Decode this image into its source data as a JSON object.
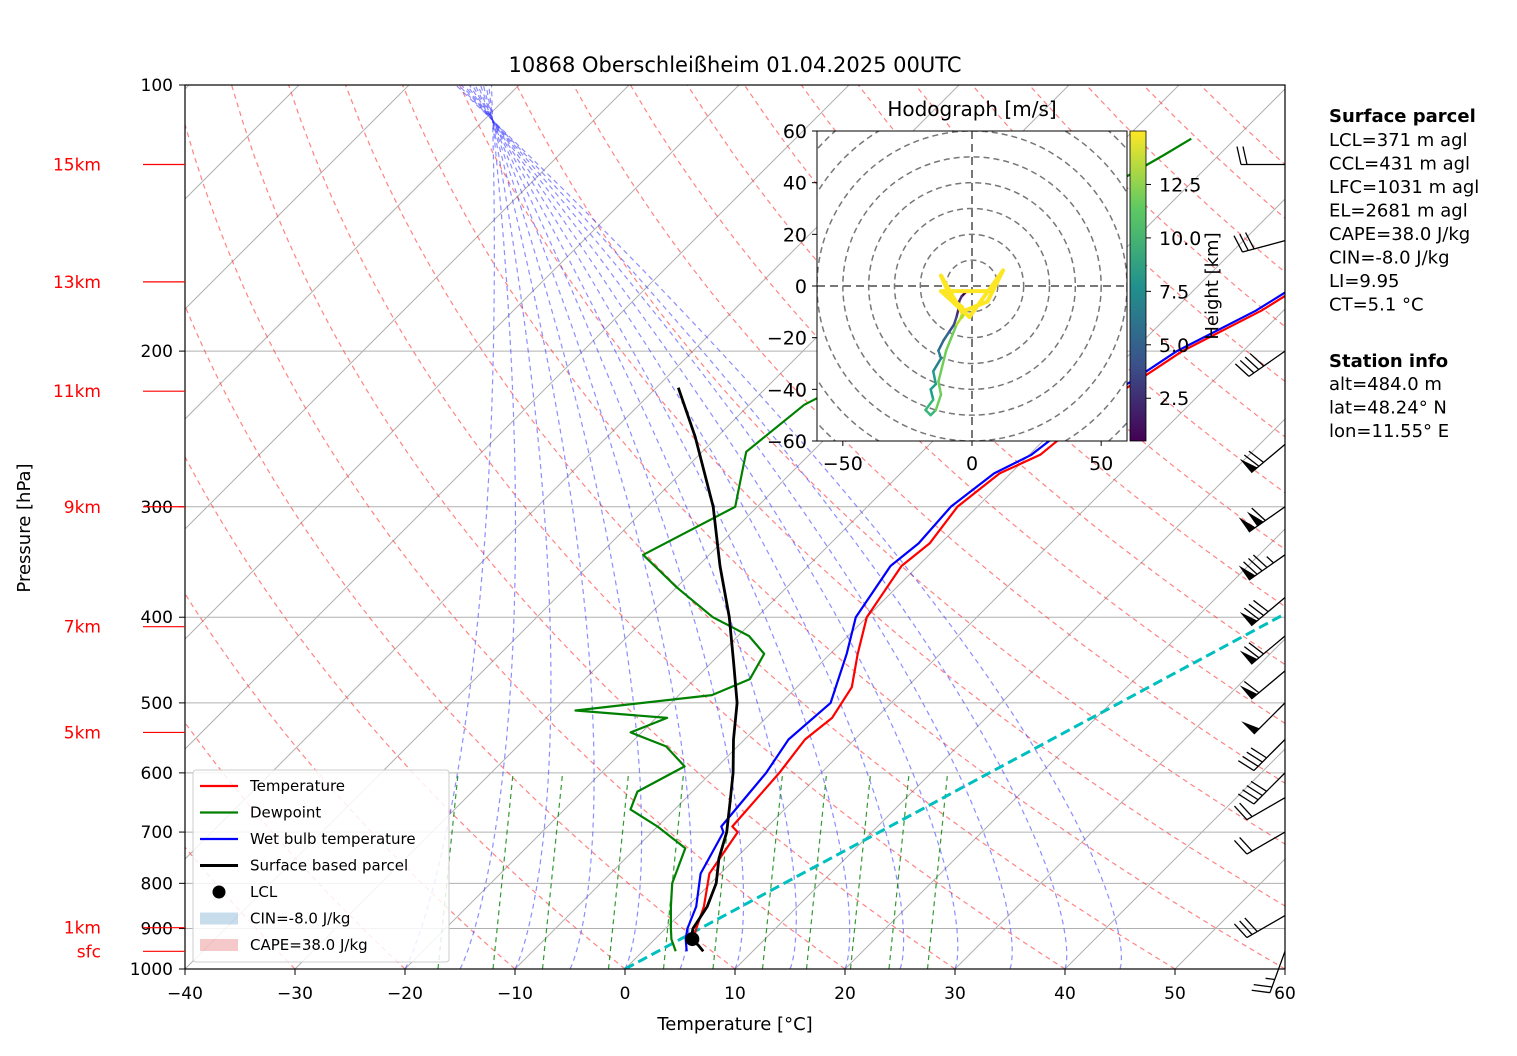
{
  "chart_data": {
    "type": "line",
    "title": "10868 Oberschleißheim 01.04.2025 00UTC",
    "xlabel": "Temperature [°C]",
    "ylabel": "Pressure [hPa]",
    "xlim": [
      -40,
      60
    ],
    "ylim": [
      1000,
      100
    ],
    "y_scale": "log",
    "grid": true,
    "legend_position": "lower-left",
    "x_ticks": [
      -40,
      -30,
      -20,
      -10,
      0,
      10,
      20,
      30,
      40,
      50,
      60
    ],
    "x_tick_labels": [
      "−40",
      "−30",
      "−20",
      "−10",
      "0",
      "10",
      "20",
      "30",
      "40",
      "50",
      "60"
    ],
    "y_ticks": [
      1000,
      900,
      800,
      700,
      600,
      500,
      400,
      300,
      200,
      100
    ],
    "y_tick_labels": [
      "1000",
      "900",
      "800",
      "700",
      "600",
      "500",
      "400",
      "300",
      "200",
      "100"
    ],
    "height_labels": [
      {
        "label": "sfc",
        "p": 955
      },
      {
        "label": "1km",
        "p": 898
      },
      {
        "label": "5km",
        "p": 540
      },
      {
        "label": "7km",
        "p": 410
      },
      {
        "label": "9km",
        "p": 300
      },
      {
        "label": "11km",
        "p": 222
      },
      {
        "label": "13km",
        "p": 167
      },
      {
        "label": "15km",
        "p": 123
      }
    ],
    "series": [
      {
        "name": "Temperature",
        "color": "#ff0000",
        "points": [
          [
            5.5,
            955
          ],
          [
            3.5,
            925
          ],
          [
            2.8,
            900
          ],
          [
            1.5,
            850
          ],
          [
            -1,
            780
          ],
          [
            -2.2,
            700
          ],
          [
            -3.2,
            690
          ],
          [
            -3.8,
            600
          ],
          [
            -4.5,
            550
          ],
          [
            -4,
            520
          ],
          [
            -5,
            480
          ],
          [
            -7.5,
            440
          ],
          [
            -10,
            400
          ],
          [
            -11.5,
            350
          ],
          [
            -11,
            330
          ],
          [
            -11.8,
            300
          ],
          [
            -11,
            275
          ],
          [
            -9,
            262
          ],
          [
            -8,
            230
          ],
          [
            -5.5,
            200
          ],
          [
            -2,
            180
          ],
          [
            0.5,
            160
          ],
          [
            3.5,
            140
          ],
          [
            5.5,
            125
          ],
          [
            6.8,
            115
          ]
        ]
      },
      {
        "name": "Dewpoint",
        "color": "#008000",
        "points": [
          [
            3,
            955
          ],
          [
            1.5,
            925
          ],
          [
            0.5,
            900
          ],
          [
            -1.5,
            850
          ],
          [
            -3.5,
            800
          ],
          [
            -5.5,
            730
          ],
          [
            -10,
            690
          ],
          [
            -14,
            660
          ],
          [
            -15,
            630
          ],
          [
            -13,
            590
          ],
          [
            -16.5,
            560
          ],
          [
            -21,
            540
          ],
          [
            -19,
            520
          ],
          [
            -28,
            510
          ],
          [
            -17,
            490
          ],
          [
            -15,
            470
          ],
          [
            -16,
            440
          ],
          [
            -19,
            420
          ],
          [
            -24,
            400
          ],
          [
            -30,
            370
          ],
          [
            -36,
            340
          ],
          [
            -32,
            300
          ],
          [
            -36,
            260
          ],
          [
            -35,
            230
          ],
          [
            -32,
            210
          ],
          [
            -33,
            190
          ],
          [
            -32,
            160
          ],
          [
            -29,
            140
          ],
          [
            -25,
            120
          ],
          [
            -24,
            115
          ]
        ]
      },
      {
        "name": "Wet bulb temperature",
        "color": "#0000ff",
        "points": [
          [
            4,
            955
          ],
          [
            2.8,
            925
          ],
          [
            2,
            900
          ],
          [
            0.8,
            850
          ],
          [
            -1.8,
            780
          ],
          [
            -3.5,
            700
          ],
          [
            -4.2,
            690
          ],
          [
            -5,
            600
          ],
          [
            -6,
            550
          ],
          [
            -5.5,
            500
          ],
          [
            -8.5,
            440
          ],
          [
            -11,
            400
          ],
          [
            -12.5,
            350
          ],
          [
            -12,
            330
          ],
          [
            -12.4,
            300
          ],
          [
            -11.5,
            275
          ],
          [
            -9.8,
            262
          ],
          [
            -8.5,
            230
          ],
          [
            -6,
            200
          ],
          [
            -2.5,
            180
          ],
          [
            0,
            160
          ],
          [
            3,
            140
          ],
          [
            5,
            125
          ],
          [
            6.5,
            115
          ]
        ]
      },
      {
        "name": "Surface based parcel",
        "color": "#000000",
        "points": [
          [
            5.5,
            955
          ],
          [
            4.5,
            940
          ],
          [
            3.3,
            925
          ],
          [
            2.5,
            900
          ],
          [
            1.8,
            850
          ],
          [
            0.5,
            800
          ],
          [
            -1.5,
            750
          ],
          [
            -3.2,
            700
          ],
          [
            -5.5,
            650
          ],
          [
            -8,
            600
          ],
          [
            -11,
            550
          ],
          [
            -14,
            500
          ],
          [
            -18,
            450
          ],
          [
            -22.5,
            400
          ],
          [
            -28,
            350
          ],
          [
            -34,
            300
          ],
          [
            -42,
            250
          ],
          [
            -48,
            220
          ]
        ]
      },
      {
        "name": "CIN=-8.0 J/kg",
        "color": "#1f77b4",
        "points": []
      },
      {
        "name": "CAPE=38.0 J/kg",
        "color": "#d62728",
        "points": []
      }
    ],
    "lcl": {
      "name": "LCL",
      "T": 3.4,
      "p": 925
    },
    "mixing_ratio_line": {
      "color": "#00bfbf",
      "points": [
        [
          0,
          1000
        ],
        [
          60,
          135
        ]
      ]
    },
    "wind_barbs": [
      {
        "p": 955,
        "speed_kt": 25,
        "dir_deg": 200
      },
      {
        "p": 870,
        "speed_kt": 30,
        "dir_deg": 240
      },
      {
        "p": 700,
        "speed_kt": 20,
        "dir_deg": 240
      },
      {
        "p": 640,
        "speed_kt": 20,
        "dir_deg": 240
      },
      {
        "p": 600,
        "speed_kt": 40,
        "dir_deg": 225
      },
      {
        "p": 550,
        "speed_kt": 40,
        "dir_deg": 225
      },
      {
        "p": 500,
        "speed_kt": 50,
        "dir_deg": 225
      },
      {
        "p": 460,
        "speed_kt": 60,
        "dir_deg": 230
      },
      {
        "p": 420,
        "speed_kt": 70,
        "dir_deg": 230
      },
      {
        "p": 380,
        "speed_kt": 80,
        "dir_deg": 230
      },
      {
        "p": 340,
        "speed_kt": 85,
        "dir_deg": 235
      },
      {
        "p": 300,
        "speed_kt": 110,
        "dir_deg": 235
      },
      {
        "p": 255,
        "speed_kt": 70,
        "dir_deg": 230
      },
      {
        "p": 200,
        "speed_kt": 40,
        "dir_deg": 235
      },
      {
        "p": 150,
        "speed_kt": 30,
        "dir_deg": 255
      },
      {
        "p": 123,
        "speed_kt": 20,
        "dir_deg": 270
      }
    ],
    "hodograph": {
      "title": "Hodograph [m/s]",
      "xlim": [
        -60,
        60
      ],
      "ylim": [
        -60,
        60
      ],
      "x_tick_labels": [
        "−50",
        "0",
        "50"
      ],
      "y_tick_labels": [
        "60",
        "40",
        "20",
        "0",
        "−20",
        "−40",
        "−60"
      ],
      "colorbar_label": "Height [km]",
      "colorbar_ticks": [
        "2.5",
        "5.0",
        "7.5",
        "10.0",
        "12.5"
      ],
      "colorbar_range": [
        0.5,
        15
      ],
      "colormap": "viridis",
      "points": [
        [
          0,
          -2,
          0.5
        ],
        [
          -2,
          -2,
          1
        ],
        [
          -4,
          -4,
          1.5
        ],
        [
          -5,
          -6,
          2
        ],
        [
          -5,
          -8,
          2.5
        ],
        [
          -6,
          -12,
          3
        ],
        [
          -7,
          -15,
          3.5
        ],
        [
          -9,
          -18,
          4
        ],
        [
          -11,
          -21,
          5
        ],
        [
          -13,
          -25,
          6
        ],
        [
          -12,
          -28,
          7
        ],
        [
          -15,
          -33,
          7.5
        ],
        [
          -14,
          -38,
          8
        ],
        [
          -16,
          -40,
          8.5
        ],
        [
          -15,
          -44,
          9
        ],
        [
          -18,
          -48,
          9.5
        ],
        [
          -16,
          -50,
          10
        ],
        [
          -14,
          -48,
          10.5
        ],
        [
          -12,
          -42,
          11
        ],
        [
          -13,
          -37,
          11
        ],
        [
          -12,
          -33,
          11
        ],
        [
          -10,
          -25,
          11.5
        ],
        [
          -8,
          -20,
          11.5
        ],
        [
          -6,
          -15,
          12
        ],
        [
          -4,
          -12,
          13
        ],
        [
          -3,
          -10,
          13.5
        ],
        [
          -4,
          -8,
          14
        ],
        [
          -8,
          -5,
          14
        ],
        [
          -12,
          4,
          14
        ],
        [
          -4,
          -10,
          14
        ],
        [
          6,
          -6,
          14
        ],
        [
          12,
          6,
          14
        ],
        [
          -1,
          -12,
          14
        ],
        [
          -12,
          -2,
          14
        ],
        [
          8,
          -2,
          14.5
        ]
      ]
    }
  },
  "info_panel": {
    "surface_title": "Surface parcel",
    "surface_lines": [
      "LCL=371 m agl",
      "CCL=431 m agl",
      "LFC=1031 m agl",
      "EL=2681 m agl",
      "CAPE=38.0 J/kg",
      "CIN=-8.0 J/kg",
      "LI=9.95",
      "CT=5.1 °C"
    ],
    "station_title": "Station info",
    "station_lines": [
      "alt=484.0 m",
      "lat=48.24° N",
      "lon=11.55° E"
    ]
  },
  "legend": {
    "entries": [
      "Temperature",
      "Dewpoint",
      "Wet bulb temperature",
      "Surface based parcel",
      "LCL",
      "CIN=-8.0 J/kg",
      "CAPE=38.0 J/kg"
    ]
  }
}
